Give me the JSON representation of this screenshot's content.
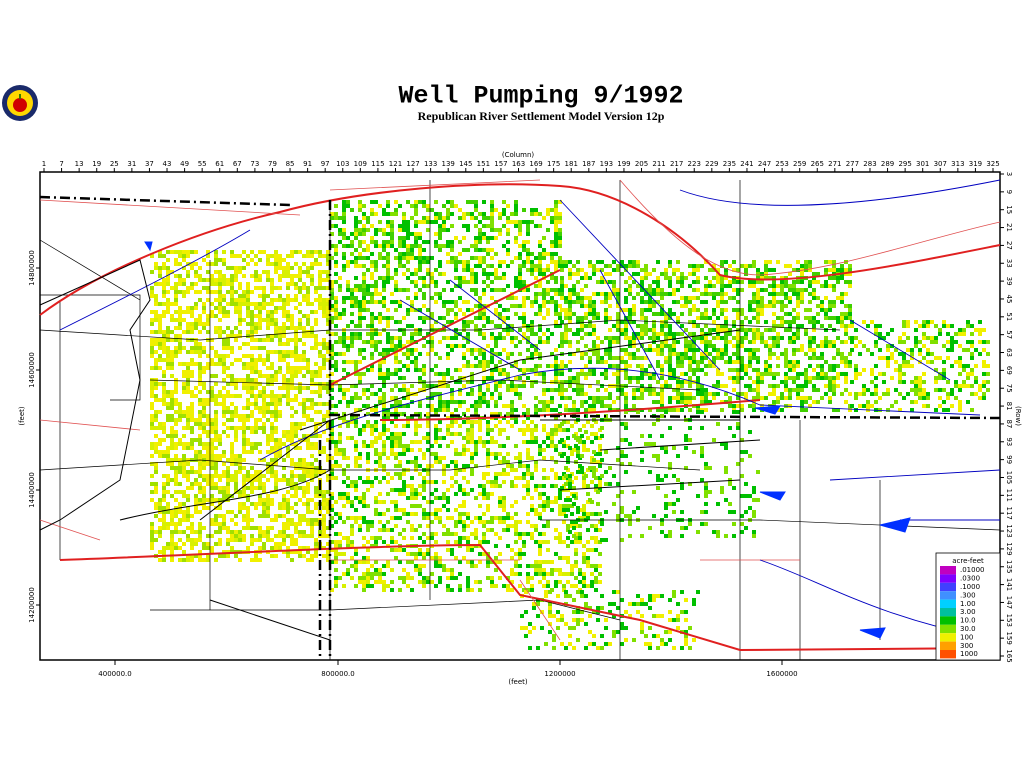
{
  "header": {
    "title": "Well Pumping  9/1992",
    "subtitle": "Republican River Settlement Model Version 12p"
  },
  "axes": {
    "column_label": "(Column)",
    "row_label": "(Row)",
    "y_label": "(feet)",
    "x_label": "(feet)",
    "columns": [
      1,
      7,
      13,
      19,
      25,
      31,
      37,
      43,
      49,
      55,
      61,
      67,
      73,
      79,
      85,
      91,
      97,
      103,
      109,
      115,
      121,
      127,
      133,
      139,
      145,
      151,
      157,
      163,
      169,
      175,
      181,
      187,
      193,
      199,
      205,
      211,
      217,
      223,
      229,
      235,
      241,
      247,
      253,
      259,
      265,
      271,
      277,
      283,
      289,
      295,
      301,
      307,
      313,
      319,
      325
    ],
    "rows": [
      3,
      9,
      15,
      21,
      27,
      33,
      39,
      45,
      51,
      57,
      63,
      69,
      75,
      81,
      87,
      93,
      99,
      105,
      111,
      117,
      123,
      129,
      135,
      141,
      147,
      153,
      159,
      165
    ],
    "y_ticks": [
      "14800000",
      "14600000",
      "14400000",
      "14200000"
    ],
    "x_ticks": [
      "400000.0",
      "800000.0",
      "1200000",
      "1600000"
    ]
  },
  "legend": {
    "title": "acre-feet",
    "labels": [
      ".01000",
      ".0300",
      ".1000",
      ".300",
      "1.00",
      "3.00",
      "10.0",
      "30.0",
      "100",
      "300",
      "1000"
    ],
    "colors": [
      "#c000c0",
      "#8000ff",
      "#4040ff",
      "#4090ff",
      "#00d0ff",
      "#00c0a0",
      "#00c000",
      "#80e000",
      "#f0f000",
      "#ffa000",
      "#ff5000"
    ]
  }
}
